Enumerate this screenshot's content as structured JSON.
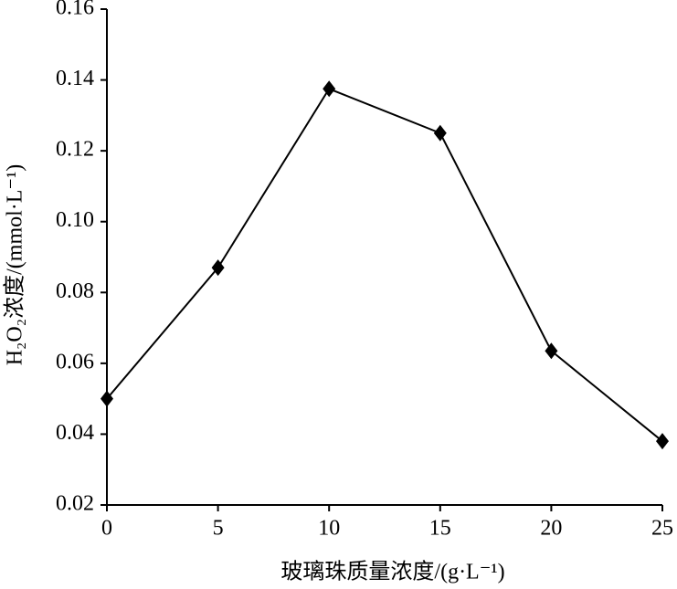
{
  "chart_data": {
    "type": "line",
    "x_label": "玻璃珠质量浓度/(g·L⁻¹)",
    "y_label": "H₂O₂浓度/(mmol·L⁻¹)",
    "x": [
      0,
      5,
      10,
      15,
      20,
      25
    ],
    "series": [
      {
        "color": "#000000",
        "values": [
          0.05,
          0.087,
          0.1375,
          0.125,
          0.0635,
          0.038
        ]
      }
    ],
    "xlim": [
      0,
      25
    ],
    "xticks": [
      0,
      5,
      10,
      15,
      20,
      25
    ],
    "ylim": [
      0.02,
      0.16
    ],
    "yticks": [
      0.02,
      0.04,
      0.06,
      0.08,
      {
        "value": 0.1,
        "label": "0.10"
      },
      0.12,
      0.14,
      0.16
    ],
    "grid": false
  }
}
